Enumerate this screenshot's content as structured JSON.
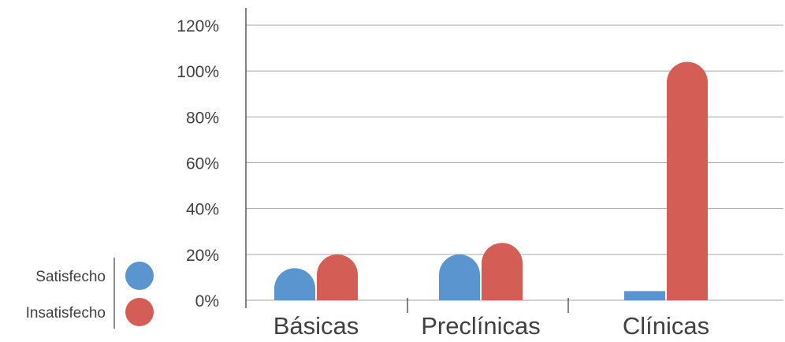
{
  "chart_data": {
    "type": "bar",
    "categories": [
      "Básicas",
      "Preclínicas",
      "Clínicas"
    ],
    "series": [
      {
        "name": "Satisfecho",
        "values": [
          14,
          20,
          4
        ],
        "color": "#5b95d0"
      },
      {
        "name": "Insatisfecho",
        "values": [
          20,
          25,
          104
        ],
        "color": "#d45d55"
      }
    ],
    "y_ticks": [
      "0%",
      "20%",
      "40%",
      "60%",
      "80%",
      "100%",
      "120%"
    ],
    "ylim": [
      0,
      120
    ],
    "grid": true,
    "legend_position": "left",
    "title": "",
    "xlabel": "",
    "ylabel": ""
  }
}
